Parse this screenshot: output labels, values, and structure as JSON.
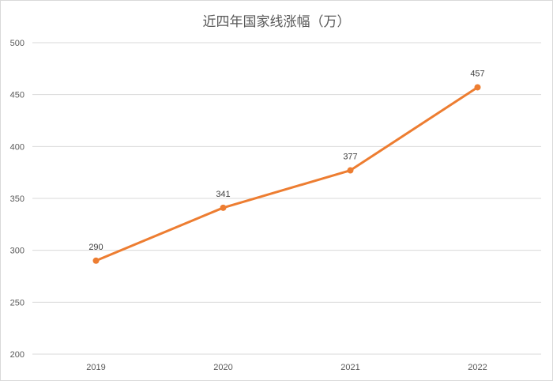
{
  "chart_data": {
    "type": "line",
    "title": "近四年国家线涨幅（万）",
    "xlabel": "",
    "ylabel": "",
    "categories": [
      "2019",
      "2020",
      "2021",
      "2022"
    ],
    "series": [
      {
        "values": [
          290,
          341,
          377,
          457
        ],
        "color": "#ed7d31"
      }
    ],
    "data_labels": [
      "290",
      "341",
      "377",
      "457"
    ],
    "ylim": [
      200,
      500
    ],
    "yticks": [
      200,
      250,
      300,
      350,
      400,
      450,
      500
    ],
    "ytick_labels": [
      "200",
      "250",
      "300",
      "350",
      "400",
      "450",
      "500"
    ],
    "grid": true,
    "legend": "none"
  }
}
